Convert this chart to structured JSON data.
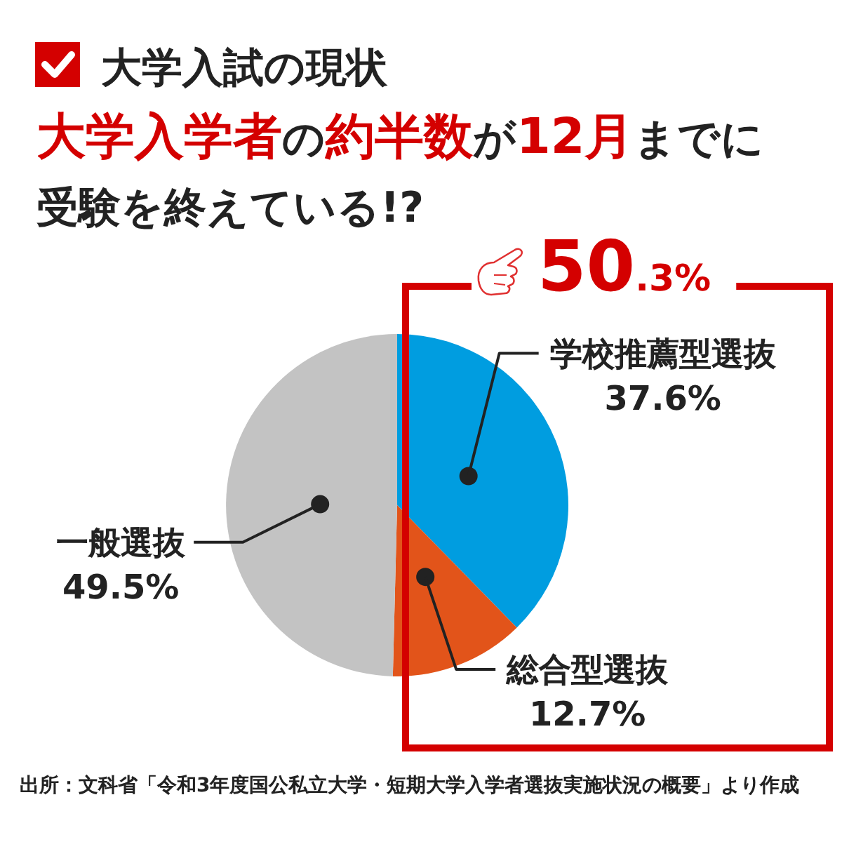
{
  "chart_data": {
    "type": "pie",
    "title": "大学入試の現状",
    "subtitle": "**大学入学者**の**約半数**が**12月**までに受験を終えている!?",
    "categories": [
      "学校推薦型選抜",
      "総合型選抜",
      "一般選抜"
    ],
    "values": [
      37.6,
      12.7,
      49.5
    ],
    "value_labels": [
      "37.6%",
      "12.7%",
      "49.5%"
    ],
    "colors": [
      "#009de0",
      "#e2541a",
      "#c3c3c3"
    ],
    "annotations": [
      "50.3%",
      "出所：文科省「令和3年度国公私立大学・短期大学入学者選抜実施状況の概要」より作成"
    ]
  }
}
